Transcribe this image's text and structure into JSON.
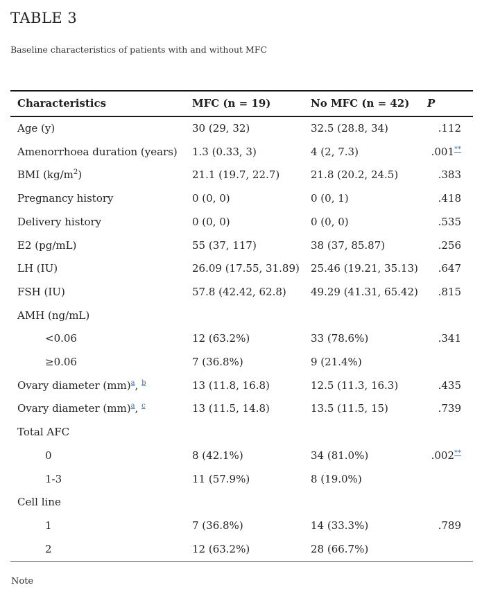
{
  "page": {
    "title": "TABLE 3",
    "subtitle": "Baseline characteristics of patients with and without MFC",
    "note_label": "Note"
  },
  "colors": {
    "text": "#232323",
    "link_blue": "#3d6f9f",
    "border_dark": "#1a1a1a",
    "border_light": "#5a5a5a"
  },
  "table": {
    "columns": [
      "Characteristics",
      "MFC (n = 19)",
      "No MFC (n = 42)",
      "P"
    ],
    "rows": [
      {
        "indent": 0,
        "label": [
          "Age (y)"
        ],
        "mfc": [
          "30 (29, 32)"
        ],
        "no_mfc": [
          "32.5 (28.8, 34)"
        ],
        "p": [
          ".112"
        ]
      },
      {
        "indent": 0,
        "label": [
          "Amenorrhoea duration (years)"
        ],
        "mfc": [
          "1.3 (0.33, 3)"
        ],
        "no_mfc": [
          "4 (2, 7.3)"
        ],
        "p": [
          ".001",
          {
            "t": "**",
            "sup": true,
            "link": true
          }
        ]
      },
      {
        "indent": 0,
        "label": [
          "BMI (kg/m",
          {
            "t": "2",
            "sup": true
          },
          ")"
        ],
        "mfc": [
          "21.1 (19.7, 22.7)"
        ],
        "no_mfc": [
          "21.8 (20.2, 24.5)"
        ],
        "p": [
          ".383"
        ]
      },
      {
        "indent": 0,
        "label": [
          "Pregnancy history"
        ],
        "mfc": [
          "0 (0, 0)"
        ],
        "no_mfc": [
          "0 (0, 1)"
        ],
        "p": [
          ".418"
        ]
      },
      {
        "indent": 0,
        "label": [
          "Delivery history"
        ],
        "mfc": [
          "0 (0, 0)"
        ],
        "no_mfc": [
          "0 (0, 0)"
        ],
        "p": [
          ".535"
        ]
      },
      {
        "indent": 0,
        "label": [
          "E2 (pg/mL)"
        ],
        "mfc": [
          "55 (37, 117)"
        ],
        "no_mfc": [
          "38 (37, 85.87)"
        ],
        "p": [
          ".256"
        ]
      },
      {
        "indent": 0,
        "label": [
          "LH (IU)"
        ],
        "mfc": [
          "26.09 (17.55, 31.89)"
        ],
        "no_mfc": [
          "25.46 (19.21, 35.13)"
        ],
        "p": [
          ".647"
        ]
      },
      {
        "indent": 0,
        "label": [
          "FSH (IU)"
        ],
        "mfc": [
          "57.8 (42.42, 62.8)"
        ],
        "no_mfc": [
          "49.29 (41.31, 65.42)"
        ],
        "p": [
          ".815"
        ]
      },
      {
        "indent": 0,
        "label": [
          "AMH (ng/mL)"
        ],
        "mfc": [],
        "no_mfc": [],
        "p": []
      },
      {
        "indent": 1,
        "label": [
          "<0.06"
        ],
        "mfc": [
          "12 (63.2%)"
        ],
        "no_mfc": [
          "33 (78.6%)"
        ],
        "p": [
          ".341"
        ]
      },
      {
        "indent": 1,
        "label": [
          "≥0.06"
        ],
        "mfc": [
          "7 (36.8%)"
        ],
        "no_mfc": [
          "9 (21.4%)"
        ],
        "p": []
      },
      {
        "indent": 0,
        "label": [
          "Ovary diameter (mm)",
          {
            "t": "a",
            "sup": true,
            "link": true
          },
          ", ",
          {
            "t": "b",
            "sup": true,
            "link": true
          }
        ],
        "mfc": [
          "13 (11.8, 16.8)"
        ],
        "no_mfc": [
          "12.5 (11.3, 16.3)"
        ],
        "p": [
          ".435"
        ]
      },
      {
        "indent": 0,
        "label": [
          "Ovary diameter (mm)",
          {
            "t": "a",
            "sup": true,
            "link": true
          },
          ", ",
          {
            "t": "c",
            "sup": true,
            "link": true
          }
        ],
        "mfc": [
          "13 (11.5, 14.8)"
        ],
        "no_mfc": [
          "13.5 (11.5, 15)"
        ],
        "p": [
          ".739"
        ]
      },
      {
        "indent": 0,
        "label": [
          "Total AFC"
        ],
        "mfc": [],
        "no_mfc": [],
        "p": []
      },
      {
        "indent": 1,
        "label": [
          "0"
        ],
        "mfc": [
          "8 (42.1%)"
        ],
        "no_mfc": [
          "34 (81.0%)"
        ],
        "p": [
          ".002",
          {
            "t": "**",
            "sup": true,
            "link": true
          }
        ]
      },
      {
        "indent": 1,
        "label": [
          "1-3"
        ],
        "mfc": [
          "11 (57.9%)"
        ],
        "no_mfc": [
          "8 (19.0%)"
        ],
        "p": []
      },
      {
        "indent": 0,
        "label": [
          "Cell line"
        ],
        "mfc": [],
        "no_mfc": [],
        "p": []
      },
      {
        "indent": 1,
        "label": [
          "1"
        ],
        "mfc": [
          "7 (36.8%)"
        ],
        "no_mfc": [
          "14 (33.3%)"
        ],
        "p": [
          ".789"
        ]
      },
      {
        "indent": 1,
        "label": [
          "2"
        ],
        "mfc": [
          "12 (63.2%)"
        ],
        "no_mfc": [
          "28 (66.7%)"
        ],
        "p": []
      }
    ]
  }
}
